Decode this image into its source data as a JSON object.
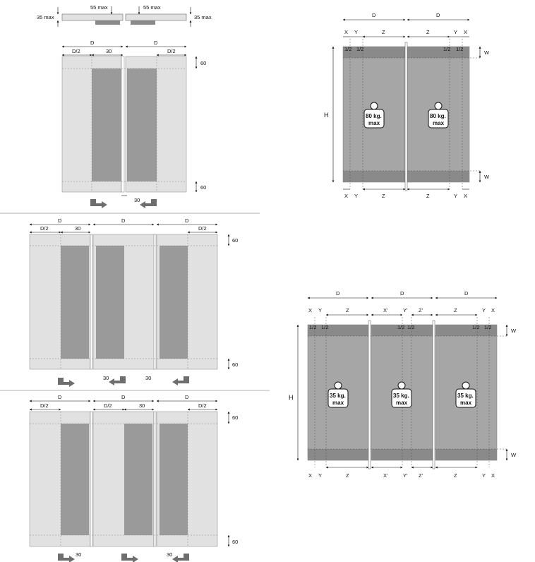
{
  "top_strip": {
    "left_note": "35 max",
    "mid_left_note": "55 max",
    "mid_right_note": "55 max",
    "right_note": "35 max"
  },
  "dims": {
    "D": "D",
    "D_half": "D/2",
    "overlap": "30",
    "rail": "60",
    "X": "X",
    "Y": "Y",
    "Z": "Z",
    "X2": "X'",
    "Y2": "Y'",
    "Z2": "Z'",
    "W": "W",
    "H": "H",
    "tick": "1/2"
  },
  "weights": {
    "two_door": {
      "value": "80 kg.",
      "unit": "max"
    },
    "three_door": {
      "value": "35 kg.",
      "unit": "max"
    }
  },
  "colors": {
    "panel_light": "#e1e1e1",
    "panel_dark": "#9a9a9a",
    "panel_mid": "#a6a6a6",
    "rail_band": "#8a8a8a",
    "arrow": "#6e6e6e"
  }
}
